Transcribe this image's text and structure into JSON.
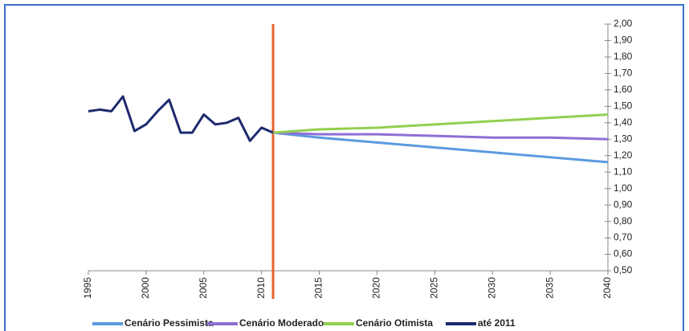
{
  "chart_data": {
    "type": "line",
    "xlim": [
      1995,
      2040
    ],
    "xticks": [
      1995,
      2000,
      2005,
      2010,
      2015,
      2020,
      2025,
      2030,
      2035,
      2040
    ],
    "ylim": [
      0.5,
      2.0
    ],
    "yticks": [
      {
        "value": 0.5,
        "label": "0,50"
      },
      {
        "value": 0.6,
        "label": "0,60"
      },
      {
        "value": 0.7,
        "label": "0,70"
      },
      {
        "value": 0.8,
        "label": "0,80"
      },
      {
        "value": 0.9,
        "label": "0,90"
      },
      {
        "value": 1.0,
        "label": "1,00"
      },
      {
        "value": 1.1,
        "label": "1,10"
      },
      {
        "value": 1.2,
        "label": "1,20"
      },
      {
        "value": 1.3,
        "label": "1,30"
      },
      {
        "value": 1.4,
        "label": "1,40"
      },
      {
        "value": 1.5,
        "label": "1,50"
      },
      {
        "value": 1.6,
        "label": "1,60"
      },
      {
        "value": 1.7,
        "label": "1,70"
      },
      {
        "value": 1.8,
        "label": "1,80"
      },
      {
        "value": 1.9,
        "label": "1,90"
      },
      {
        "value": 2.0,
        "label": "2,00"
      }
    ],
    "vline": {
      "x": 2011,
      "color": "#e8642c"
    },
    "series": [
      {
        "name": "Cenário Pessimista",
        "color": "#5b9be0",
        "x": [
          2011,
          2015,
          2020,
          2025,
          2030,
          2035,
          2040
        ],
        "values": [
          1.34,
          1.31,
          1.28,
          1.25,
          1.22,
          1.19,
          1.16
        ]
      },
      {
        "name": "Cenário Moderado",
        "color": "#8e6fd6",
        "x": [
          2011,
          2015,
          2020,
          2025,
          2030,
          2035,
          2040
        ],
        "values": [
          1.34,
          1.33,
          1.33,
          1.32,
          1.31,
          1.31,
          1.3
        ]
      },
      {
        "name": "Cenário Otimista",
        "color": "#92d050",
        "x": [
          2011,
          2015,
          2020,
          2025,
          2030,
          2035,
          2040
        ],
        "values": [
          1.34,
          1.36,
          1.37,
          1.39,
          1.41,
          1.43,
          1.45
        ]
      },
      {
        "name": "até 2011",
        "color": "#1f2a6e",
        "x": [
          1995,
          1996,
          1997,
          1998,
          1999,
          2000,
          2001,
          2002,
          2003,
          2004,
          2005,
          2006,
          2007,
          2008,
          2009,
          2010,
          2011
        ],
        "values": [
          1.47,
          1.48,
          1.47,
          1.56,
          1.35,
          1.39,
          1.47,
          1.54,
          1.34,
          1.34,
          1.45,
          1.39,
          1.4,
          1.43,
          1.29,
          1.37,
          1.34
        ]
      }
    ]
  }
}
